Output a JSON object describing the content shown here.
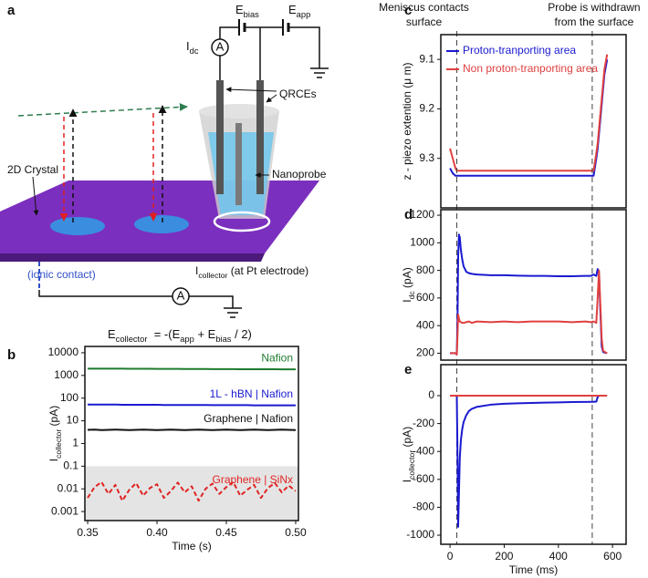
{
  "schematic": {
    "panel": "a",
    "idc": [
      {
        "text": "I"
      },
      {
        "text": "dc",
        "sub": true
      }
    ],
    "ebias": [
      {
        "text": "E"
      },
      {
        "text": "bias",
        "sub": true
      }
    ],
    "eapp": [
      {
        "text": "E"
      },
      {
        "text": "app",
        "sub": true
      }
    ],
    "meter_dc": "A",
    "meter_collector": "A",
    "qrces": "QRCEs",
    "nanoprobe": "Nanoprobe",
    "crystal": "2D Crystal",
    "ionic": "(ionic contact)",
    "icollector": [
      {
        "text": "I"
      },
      {
        "text": "collector",
        "sub": true
      },
      {
        "text": " (at Pt electrode)"
      }
    ],
    "formula": [
      {
        "text": "E"
      },
      {
        "text": "collector",
        "sub": true
      },
      {
        "text": "  = -("
      },
      {
        "text": "E"
      },
      {
        "text": "app",
        "sub": true
      },
      {
        "text": " + "
      },
      {
        "text": "E"
      },
      {
        "text": "bias",
        "sub": true
      },
      {
        "text": " / 2)"
      }
    ]
  },
  "chart_data": [
    {
      "panel": "b",
      "type": "line",
      "log_y": true,
      "ylabel": [
        {
          "text": "I"
        },
        {
          "text": "collector",
          "sub": true
        },
        {
          "text": " (pA)"
        }
      ],
      "xlabel": "Time (s)",
      "xlim": [
        0.348,
        0.502
      ],
      "xticks": [
        0.35,
        {
          "value": 0.4,
          "label": "0.40"
        },
        0.45,
        {
          "value": 0.5,
          "label": "0.50"
        }
      ],
      "ylim": [
        0.0004,
        19000
      ],
      "yticks": [
        0.001,
        0.01,
        0.1,
        1,
        10,
        100,
        1000,
        10000
      ],
      "shade_below": 0.1,
      "shade_color": "#e4e4e4",
      "labels_on_lines": true,
      "x": [
        0.35,
        0.355,
        0.36,
        0.365,
        0.37,
        0.375,
        0.38,
        0.385,
        0.39,
        0.395,
        0.4,
        0.405,
        0.41,
        0.415,
        0.42,
        0.425,
        0.43,
        0.435,
        0.44,
        0.445,
        0.45,
        0.455,
        0.46,
        0.465,
        0.47,
        0.475,
        0.48,
        0.485,
        0.49,
        0.495,
        0.5
      ],
      "series": [
        {
          "name": "Nafion",
          "color": "#1e7b2e",
          "values": [
            2000,
            2000,
            1990,
            1990,
            1980,
            1980,
            1970,
            1970,
            1960,
            1960,
            1950,
            1950,
            1940,
            1940,
            1930,
            1930,
            1920,
            1920,
            1910,
            1910,
            1900,
            1900,
            1890,
            1890,
            1880,
            1880,
            1870,
            1870,
            1860,
            1860,
            1850
          ]
        },
        {
          "name": "1L - hBN | Nafion",
          "color": "#1a1ad0",
          "values": [
            52,
            52,
            52,
            52,
            52,
            51,
            51,
            51,
            51,
            51,
            51,
            50,
            50,
            50,
            50,
            50,
            50,
            50,
            49,
            49,
            49,
            49,
            49,
            49,
            48,
            48,
            48,
            48,
            48,
            48,
            48
          ]
        },
        {
          "name": "Graphene | Nafion",
          "color": "#111111",
          "values": [
            4.0,
            4.1,
            3.9,
            4.0,
            4.1,
            4.0,
            3.9,
            4.0,
            4.1,
            4.0,
            3.9,
            4.0,
            4.1,
            4.0,
            3.9,
            4.0,
            4.1,
            4.0,
            3.9,
            4.0,
            4.1,
            4.0,
            3.9,
            4.0,
            4.1,
            4.0,
            3.9,
            4.0,
            4.1,
            4.0,
            3.9
          ]
        },
        {
          "name": "Graphene | SiNx",
          "color": "#e02424",
          "dashed": true,
          "values": [
            0.004,
            0.012,
            0.02,
            0.006,
            0.015,
            0.003,
            0.009,
            0.018,
            0.005,
            0.011,
            0.016,
            0.004,
            0.008,
            0.019,
            0.007,
            0.013,
            0.003,
            0.01,
            0.017,
            0.006,
            0.012,
            0.02,
            0.005,
            0.009,
            0.015,
            0.004,
            0.011,
            0.018,
            0.007,
            0.014,
            0.008
          ]
        }
      ]
    },
    {
      "panel": "c",
      "type": "line",
      "ylabel": [
        {
          "text": "z - piezo extention (μ m)"
        }
      ],
      "xlim": [
        -34,
        650
      ],
      "ylim": [
        9.4,
        9.05
      ],
      "yticks": [
        9.1,
        9.2,
        9.3
      ],
      "legend": "upper left",
      "annotations": [
        {
          "lines": [
            "Meniscus contacts",
            "surface"
          ],
          "x": 25
        },
        {
          "lines": [
            "Probe is withdrawn",
            "from the surface"
          ],
          "x": 525
        }
      ],
      "x": [
        0,
        10,
        20,
        25,
        28,
        30,
        33,
        36,
        40,
        45,
        50,
        60,
        70,
        80,
        100,
        150,
        200,
        250,
        300,
        350,
        400,
        450,
        500,
        520,
        530,
        540,
        545,
        550,
        555,
        560,
        565,
        570,
        580
      ],
      "series": [
        {
          "name": "Proton-tranporting area",
          "color": "#1a1ad0",
          "values": [
            9.32,
            9.33,
            9.335,
            9.335,
            9.335,
            9.335,
            9.335,
            9.335,
            9.335,
            9.335,
            9.335,
            9.335,
            9.335,
            9.335,
            9.335,
            9.335,
            9.335,
            9.335,
            9.335,
            9.335,
            9.335,
            9.335,
            9.335,
            9.335,
            9.335,
            9.3,
            9.28,
            9.25,
            9.22,
            9.19,
            9.16,
            9.13,
            9.1
          ]
        },
        {
          "name": "Non proton-tranporting area",
          "color": "#e04040",
          "values": [
            9.28,
            9.3,
            9.32,
            9.325,
            9.325,
            9.325,
            9.325,
            9.325,
            9.325,
            9.325,
            9.325,
            9.325,
            9.325,
            9.325,
            9.325,
            9.325,
            9.325,
            9.325,
            9.325,
            9.325,
            9.325,
            9.325,
            9.325,
            9.325,
            9.325,
            9.29,
            9.27,
            9.24,
            9.21,
            9.18,
            9.15,
            9.12,
            9.09
          ]
        }
      ]
    },
    {
      "panel": "d",
      "type": "line",
      "ylabel": [
        {
          "text": "I"
        },
        {
          "text": "dc",
          "sub": true
        },
        {
          "text": " (pA)"
        }
      ],
      "xlim": [
        -34,
        650
      ],
      "ylim": [
        150,
        1240
      ],
      "yticks": [
        200,
        400,
        600,
        800,
        1000,
        1200
      ],
      "x": [
        0,
        10,
        20,
        25,
        28,
        30,
        33,
        36,
        40,
        45,
        50,
        60,
        70,
        80,
        100,
        150,
        200,
        250,
        300,
        350,
        400,
        450,
        500,
        520,
        530,
        540,
        545,
        550,
        555,
        560,
        565,
        570,
        580
      ],
      "series": [
        {
          "color": "#1a1ad0",
          "values": [
            200,
            200,
            200,
            190,
            500,
            900,
            1060,
            1040,
            950,
            880,
            830,
            790,
            780,
            775,
            770,
            765,
            765,
            762,
            760,
            760,
            758,
            758,
            760,
            760,
            770,
            760,
            810,
            780,
            500,
            250,
            210,
            205,
            200
          ]
        },
        {
          "color": "#e04040",
          "values": [
            200,
            200,
            200,
            190,
            350,
            480,
            450,
            430,
            425,
            420,
            420,
            425,
            430,
            420,
            430,
            425,
            430,
            425,
            430,
            430,
            430,
            425,
            430,
            425,
            430,
            420,
            600,
            800,
            550,
            300,
            220,
            210,
            200
          ]
        }
      ]
    },
    {
      "panel": "e",
      "type": "line",
      "ylabel": [
        {
          "text": "I"
        },
        {
          "text": "collector",
          "sub": true
        },
        {
          "text": " (pA)"
        }
      ],
      "xlabel": "Time (ms)",
      "xlim": [
        -34,
        650
      ],
      "ylim": [
        -1065,
        222
      ],
      "yticks": [
        0,
        -200,
        -400,
        -600,
        -800,
        -1000
      ],
      "xticks": [
        0,
        200,
        400,
        600
      ],
      "x": [
        0,
        10,
        20,
        25,
        28,
        30,
        33,
        36,
        40,
        45,
        50,
        60,
        70,
        80,
        100,
        150,
        200,
        250,
        300,
        350,
        400,
        450,
        500,
        520,
        530,
        540,
        545,
        550,
        555,
        560,
        565,
        570,
        580
      ],
      "series": [
        {
          "color": "#1a1ad0",
          "values": [
            0,
            0,
            0,
            0,
            -500,
            -940,
            -700,
            -450,
            -320,
            -240,
            -190,
            -140,
            -110,
            -95,
            -80,
            -65,
            -58,
            -55,
            -52,
            -50,
            -48,
            -46,
            -45,
            -44,
            -44,
            -43,
            -10,
            0,
            null,
            null,
            null,
            null,
            null
          ]
        },
        {
          "color": "#e04040",
          "values": [
            0,
            0,
            0,
            0,
            0,
            0,
            0,
            0,
            0,
            0,
            0,
            0,
            0,
            0,
            0,
            0,
            0,
            0,
            0,
            0,
            0,
            0,
            0,
            0,
            0,
            0,
            0,
            0,
            0,
            0,
            0,
            0,
            0
          ]
        }
      ]
    }
  ]
}
